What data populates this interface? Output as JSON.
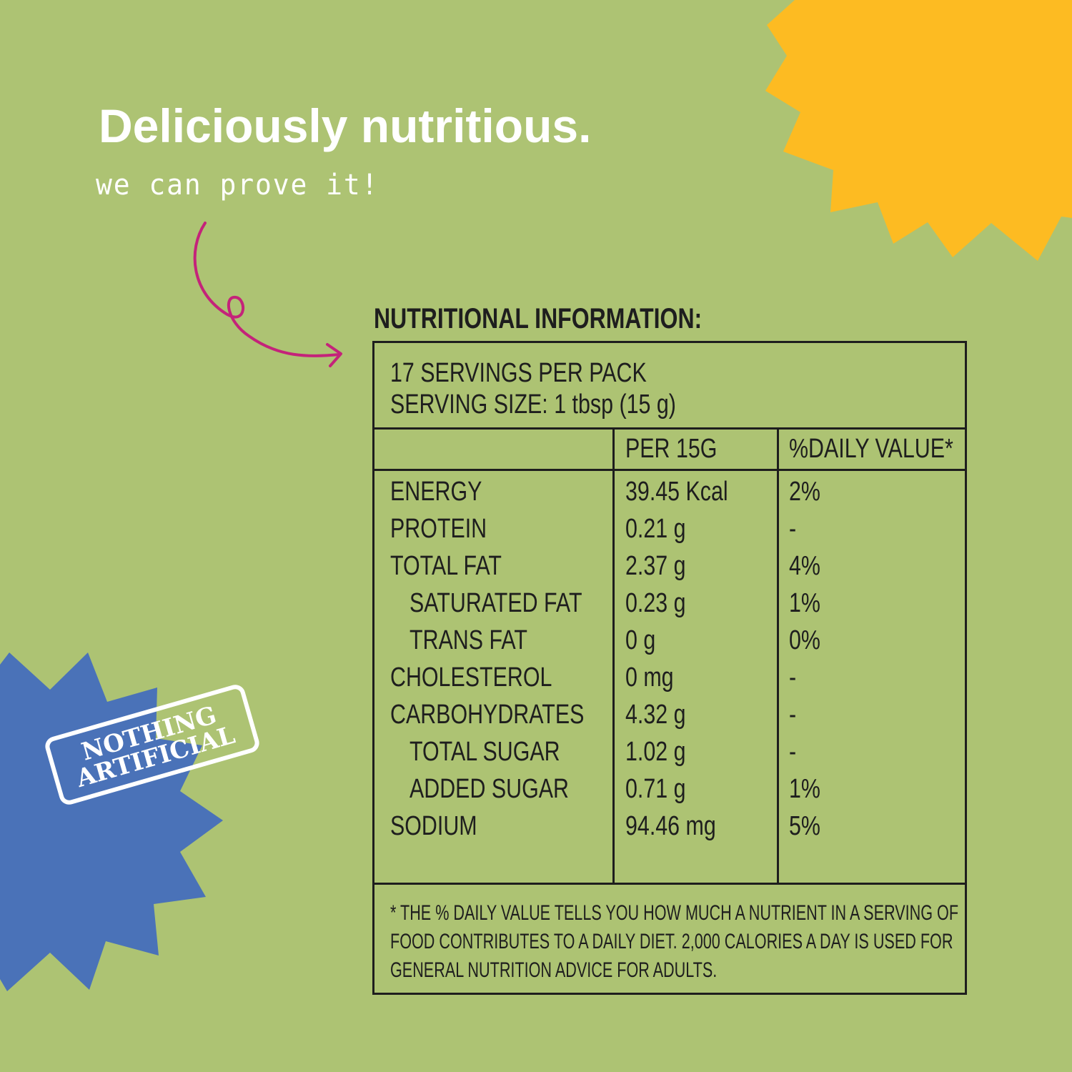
{
  "colors": {
    "background": "#adc373",
    "sun": "#fdbb22",
    "starburst": "#4a72b8",
    "arrow": "#c4237a",
    "text": "#1e1e1e"
  },
  "headline": "Deliciously nutritious.",
  "subheadline": "we can prove it!",
  "badge": {
    "line1": "NOTHING",
    "line2": "ARTIFICIAL"
  },
  "nutrition": {
    "title": "NUTRITIONAL INFORMATION:",
    "servings": "17 SERVINGS PER PACK",
    "serving_size": "SERVING SIZE: 1 tbsp (15 g)",
    "columns": [
      "PER 15G",
      "%DAILY VALUE*"
    ],
    "rows": [
      {
        "name": "ENERGY",
        "amount": "39.45 Kcal",
        "dv": "2%",
        "indent": false
      },
      {
        "name": "PROTEIN",
        "amount": "0.21 g",
        "dv": "-",
        "indent": false
      },
      {
        "name": "TOTAL FAT",
        "amount": "2.37 g",
        "dv": "4%",
        "indent": false
      },
      {
        "name": "SATURATED FAT",
        "amount": "0.23 g",
        "dv": "1%",
        "indent": true
      },
      {
        "name": "TRANS FAT",
        "amount": "0 g",
        "dv": "0%",
        "indent": true
      },
      {
        "name": "CHOLESTEROL",
        "amount": "0 mg",
        "dv": "-",
        "indent": false
      },
      {
        "name": "CARBOHYDRATES",
        "amount": "4.32 g",
        "dv": "-",
        "indent": false
      },
      {
        "name": "TOTAL SUGAR",
        "amount": "1.02 g",
        "dv": "-",
        "indent": true
      },
      {
        "name": "ADDED SUGAR",
        "amount": "0.71 g",
        "dv": "1%",
        "indent": true
      },
      {
        "name": "SODIUM",
        "amount": "94.46 mg",
        "dv": "5%",
        "indent": false
      }
    ],
    "footnote": [
      "* THE % DAILY VALUE TELLS YOU HOW MUCH A NUTRIENT IN A SERVING OF",
      "FOOD CONTRIBUTES TO A DAILY DIET. 2,000 CALORIES A DAY IS USED FOR",
      "GENERAL NUTRITION ADVICE FOR ADULTS."
    ]
  }
}
